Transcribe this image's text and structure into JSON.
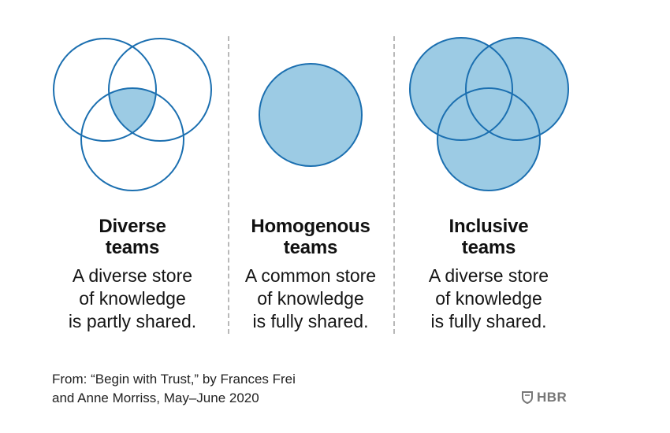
{
  "colors": {
    "stroke": "#1b6fb0",
    "fill": "#9ccbe4",
    "divider": "#b8b8b8",
    "logo": "#777777"
  },
  "panels": [
    {
      "title": "Diverse\nteams",
      "description": "A diverse store\nof knowledge\nis partly shared.",
      "circles": 3,
      "fill_mode": "intersection"
    },
    {
      "title": "Homogenous\nteams",
      "description": "A common store\nof knowledge\nis fully shared.",
      "circles": 1,
      "fill_mode": "full"
    },
    {
      "title": "Inclusive\nteams",
      "description": "A diverse store\nof knowledge\nis fully shared.",
      "circles": 3,
      "fill_mode": "full"
    }
  ],
  "source": "From: “Begin with Trust,” by Frances Frei\nand Anne Morriss, May–June 2020",
  "logo": {
    "icon": "shield-icon",
    "text": "HBR"
  }
}
